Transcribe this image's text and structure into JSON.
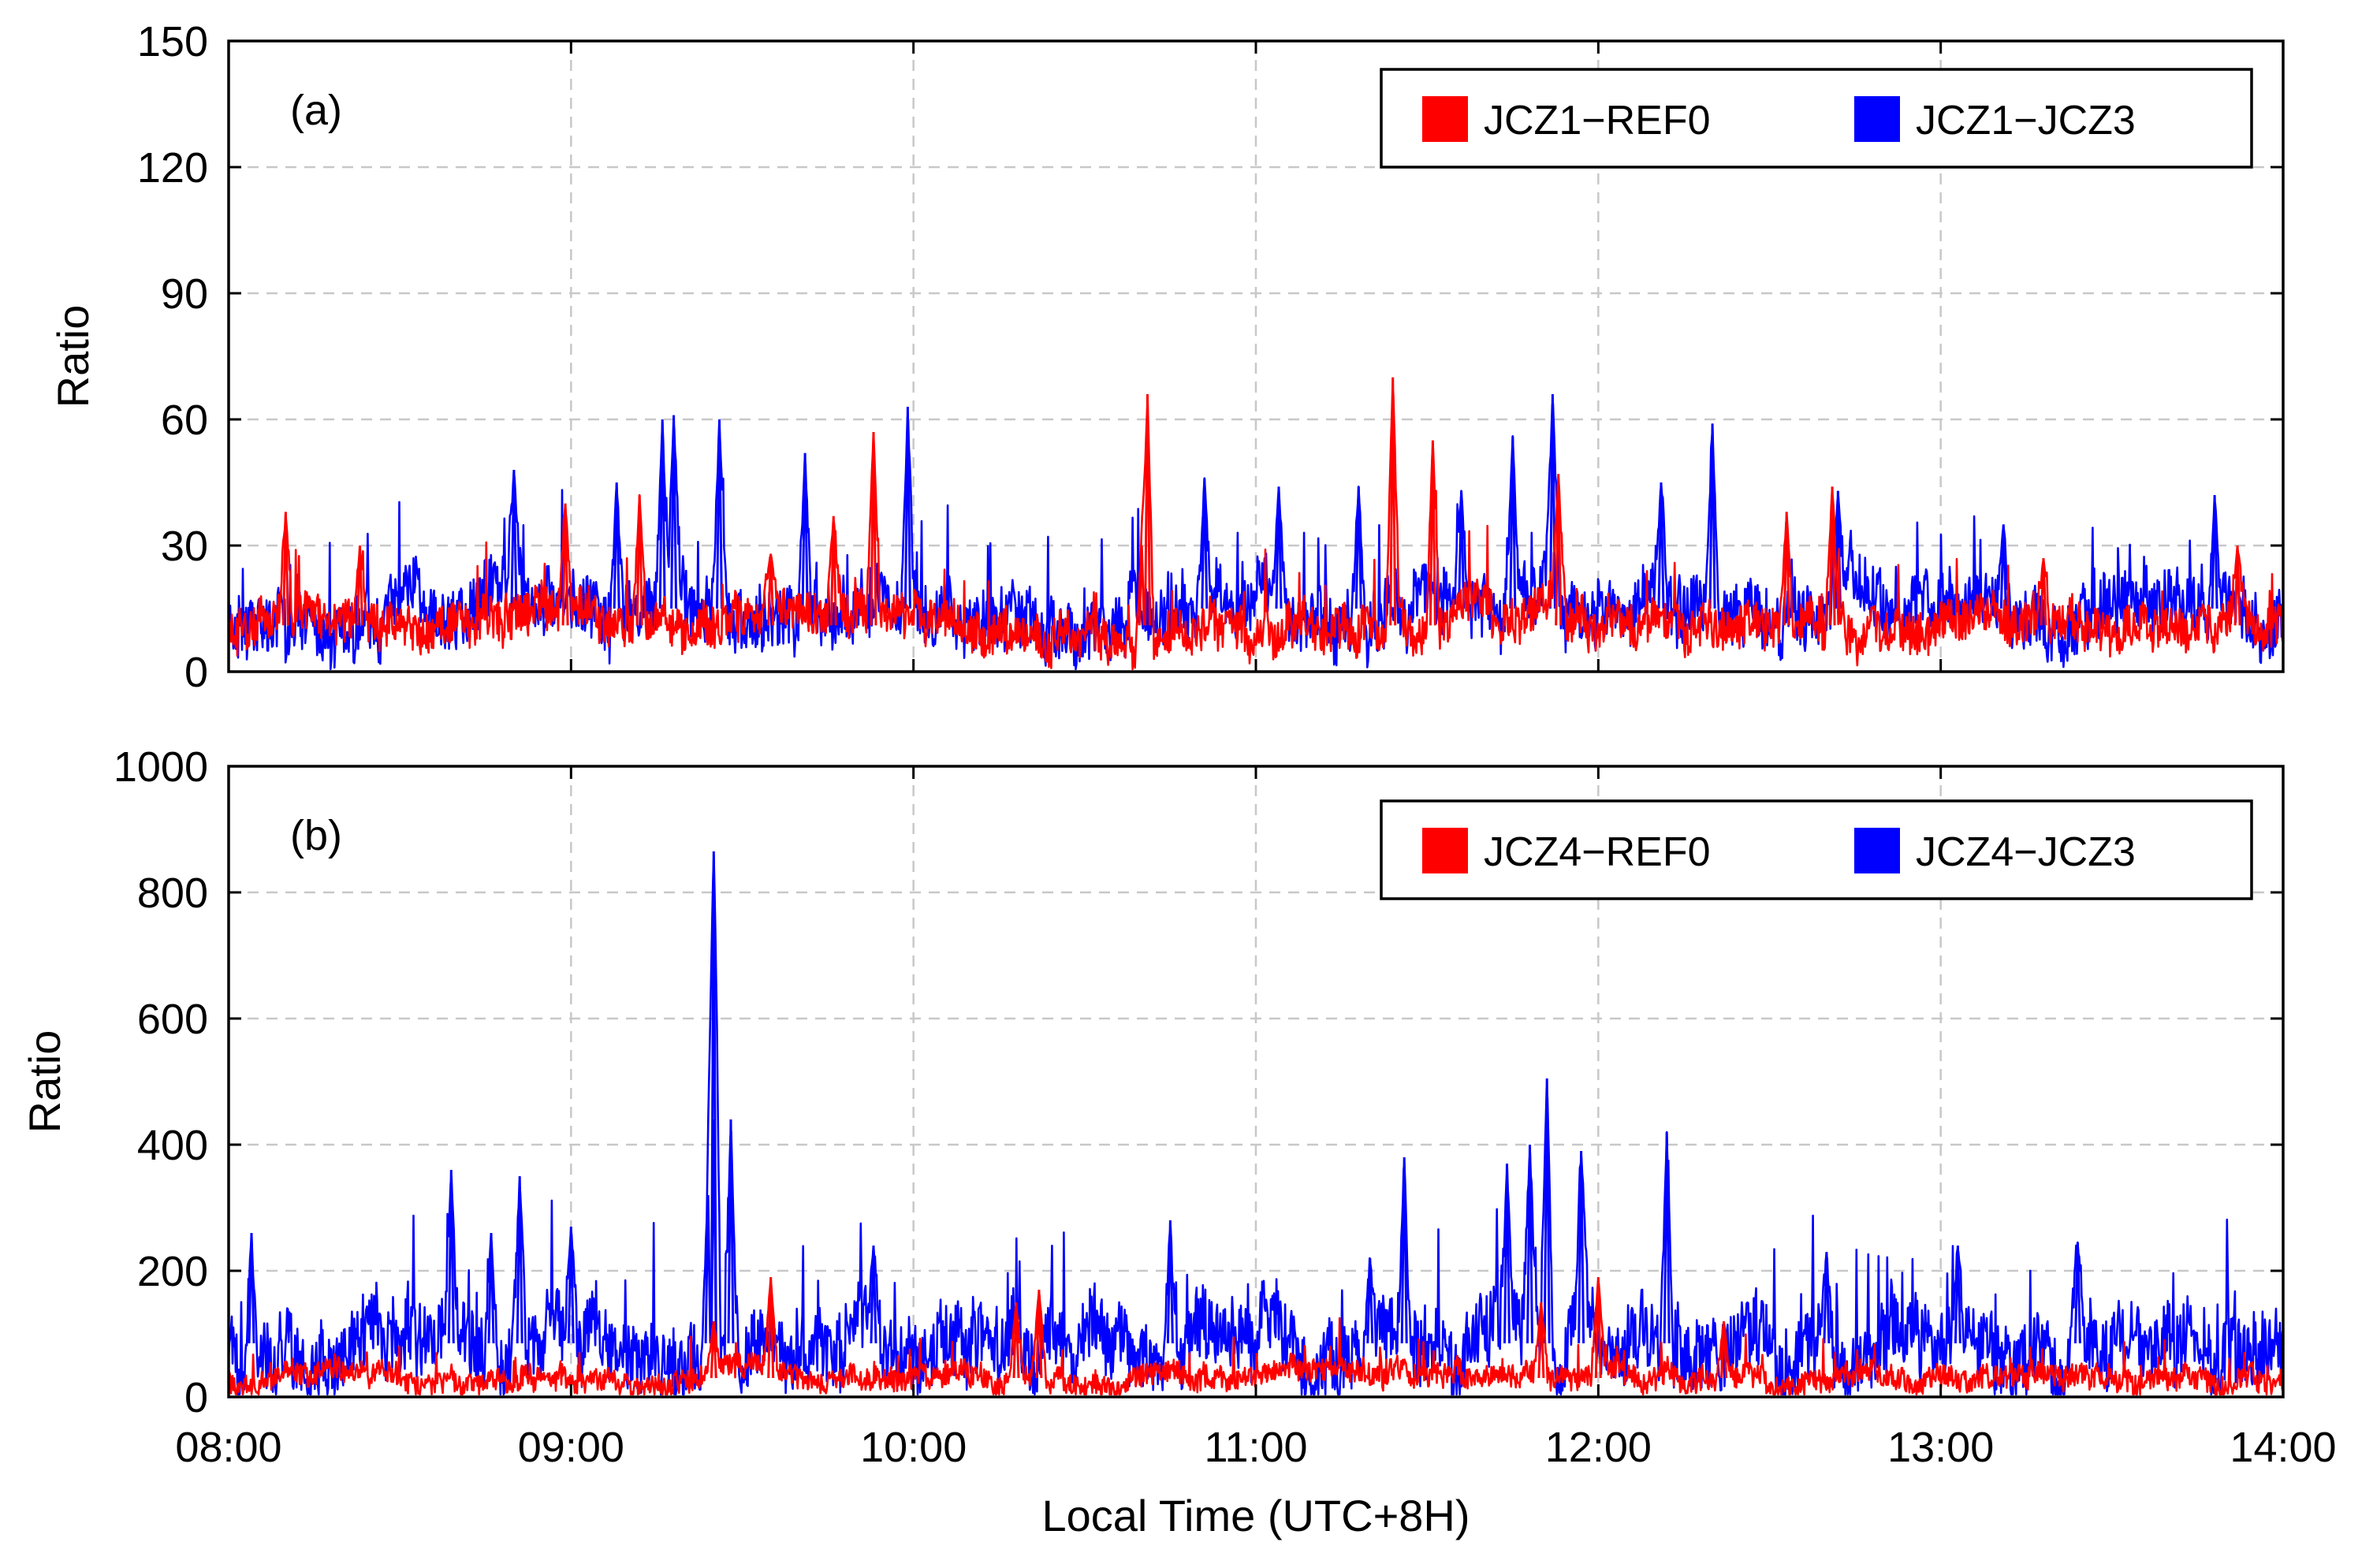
{
  "chart_data": [
    {
      "type": "line",
      "panel_label": "(a)",
      "xlabel": "",
      "ylabel": "Ratio",
      "xlim": [
        "08:00",
        "14:00"
      ],
      "ylim": [
        0,
        150
      ],
      "yticks": [
        "0",
        "30",
        "60",
        "90",
        "120",
        "150"
      ],
      "xticks": [
        "08:00",
        "09:00",
        "10:00",
        "11:00",
        "12:00",
        "13:00",
        "14:00"
      ],
      "grid": true,
      "legend_position": "top-right",
      "series": [
        {
          "name": "JCZ1−REF0",
          "color": "#ff0000",
          "baseline": 11,
          "noise": 5,
          "peaks": [
            {
              "t": "08:10",
              "v": 38
            },
            {
              "t": "08:23",
              "v": 30
            },
            {
              "t": "08:59",
              "v": 40
            },
            {
              "t": "09:12",
              "v": 42
            },
            {
              "t": "09:35",
              "v": 28
            },
            {
              "t": "09:46",
              "v": 37
            },
            {
              "t": "09:53",
              "v": 57
            },
            {
              "t": "10:40",
              "v": 30
            },
            {
              "t": "10:41",
              "v": 66
            },
            {
              "t": "11:24",
              "v": 70
            },
            {
              "t": "11:31",
              "v": 55
            },
            {
              "t": "11:53",
              "v": 47
            },
            {
              "t": "12:33",
              "v": 38
            },
            {
              "t": "12:41",
              "v": 44
            },
            {
              "t": "13:18",
              "v": 27
            },
            {
              "t": "13:52",
              "v": 30
            }
          ]
        },
        {
          "name": "JCZ1−JCZ3",
          "color": "#0000ff",
          "baseline": 15,
          "noise": 7,
          "peaks": [
            {
              "t": "08:50",
              "v": 48
            },
            {
              "t": "09:08",
              "v": 45
            },
            {
              "t": "09:16",
              "v": 60
            },
            {
              "t": "09:18",
              "v": 61
            },
            {
              "t": "09:26",
              "v": 60
            },
            {
              "t": "09:41",
              "v": 52
            },
            {
              "t": "09:59",
              "v": 63
            },
            {
              "t": "10:51",
              "v": 46
            },
            {
              "t": "11:04",
              "v": 44
            },
            {
              "t": "11:18",
              "v": 44
            },
            {
              "t": "11:36",
              "v": 43
            },
            {
              "t": "11:45",
              "v": 56
            },
            {
              "t": "11:52",
              "v": 66
            },
            {
              "t": "12:11",
              "v": 45
            },
            {
              "t": "12:20",
              "v": 59
            },
            {
              "t": "12:42",
              "v": 43
            },
            {
              "t": "13:11",
              "v": 35
            },
            {
              "t": "13:48",
              "v": 42
            }
          ]
        }
      ]
    },
    {
      "type": "line",
      "panel_label": "(b)",
      "xlabel": "Local Time (UTC+8H)",
      "ylabel": "Ratio",
      "xlim": [
        "08:00",
        "14:00"
      ],
      "ylim": [
        0,
        1000
      ],
      "yticks": [
        "0",
        "200",
        "400",
        "600",
        "800",
        "1000"
      ],
      "xticks": [
        "08:00",
        "09:00",
        "10:00",
        "11:00",
        "12:00",
        "13:00",
        "14:00"
      ],
      "grid": true,
      "legend_position": "top-right",
      "series": [
        {
          "name": "JCZ4−REF0",
          "color": "#ff0000",
          "baseline": 30,
          "noise": 18,
          "peaks": [
            {
              "t": "09:25",
              "v": 120
            },
            {
              "t": "09:35",
              "v": 190
            },
            {
              "t": "10:18",
              "v": 150
            },
            {
              "t": "10:22",
              "v": 170
            },
            {
              "t": "11:50",
              "v": 150
            },
            {
              "t": "12:00",
              "v": 190
            },
            {
              "t": "12:22",
              "v": 120
            }
          ]
        },
        {
          "name": "JCZ4−JCZ3",
          "color": "#0000ff",
          "baseline": 85,
          "noise": 55,
          "peaks": [
            {
              "t": "08:04",
              "v": 260
            },
            {
              "t": "08:39",
              "v": 360
            },
            {
              "t": "08:46",
              "v": 260
            },
            {
              "t": "08:51",
              "v": 350
            },
            {
              "t": "09:00",
              "v": 270
            },
            {
              "t": "09:24",
              "v": 320
            },
            {
              "t": "09:25",
              "v": 440
            },
            {
              "t": "09:25",
              "v": 865
            },
            {
              "t": "09:28",
              "v": 440
            },
            {
              "t": "09:53",
              "v": 240
            },
            {
              "t": "10:45",
              "v": 280
            },
            {
              "t": "11:20",
              "v": 220
            },
            {
              "t": "11:26",
              "v": 380
            },
            {
              "t": "11:44",
              "v": 370
            },
            {
              "t": "11:48",
              "v": 400
            },
            {
              "t": "11:51",
              "v": 505
            },
            {
              "t": "11:57",
              "v": 390
            },
            {
              "t": "12:12",
              "v": 420
            },
            {
              "t": "12:40",
              "v": 230
            },
            {
              "t": "13:03",
              "v": 240
            },
            {
              "t": "13:24",
              "v": 245
            }
          ]
        }
      ]
    }
  ]
}
